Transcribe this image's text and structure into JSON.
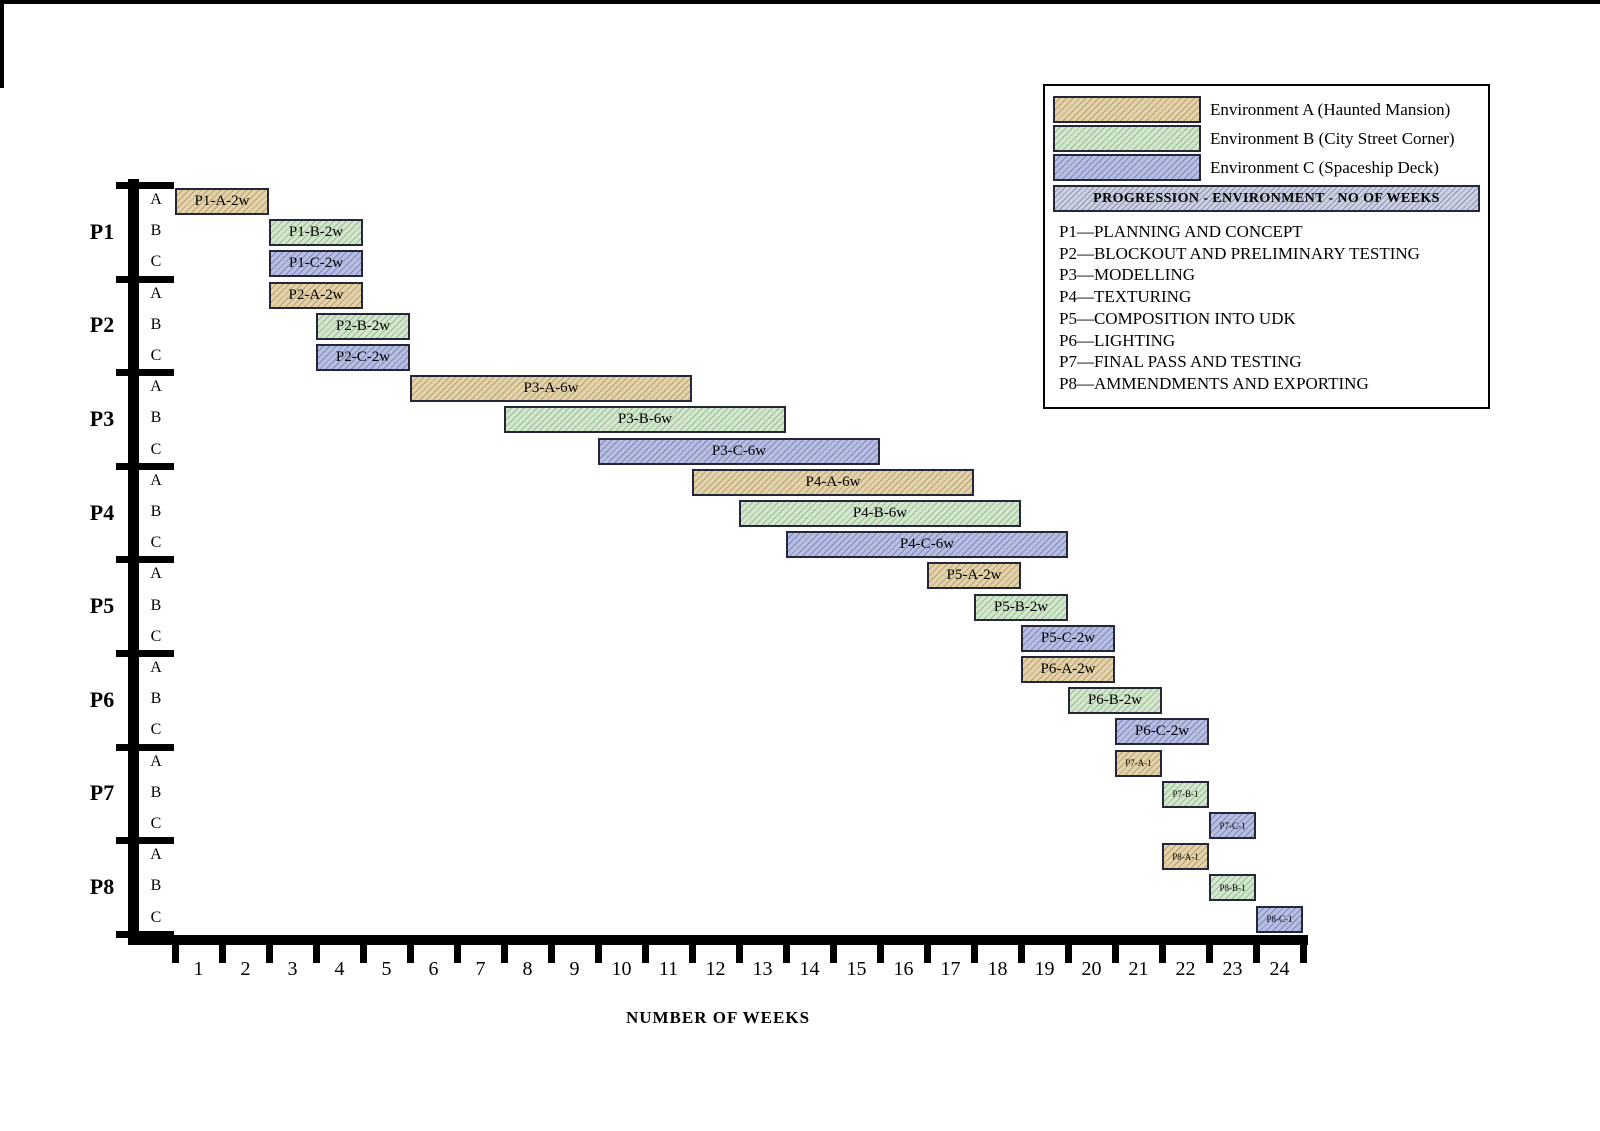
{
  "colors": {
    "env_a_fill": "#e3d3ac",
    "env_a_hatch": "#bba26c",
    "env_b_fill": "#d4e6cd",
    "env_b_hatch": "#97bf94",
    "env_c_fill": "#b7bedf",
    "env_c_hatch": "#8089c2",
    "key_fill": "#ccd0df",
    "key_hatch": "#8d96b8",
    "bar_border": "#26263a"
  },
  "legend": {
    "items": [
      {
        "env": "A",
        "label": "Environment A (Haunted Mansion)"
      },
      {
        "env": "B",
        "label": "Environment B (City Street Corner)"
      },
      {
        "env": "C",
        "label": "Environment C (Spaceship Deck)"
      }
    ],
    "key_bar_label": "PROGRESSION - ENVIRONMENT - NO OF WEEKS",
    "phase_descriptions": [
      "P1—PLANNING AND CONCEPT",
      "P2—BLOCKOUT AND PRELIMINARY TESTING",
      "P3—MODELLING",
      "P4—TEXTURING",
      "P5—COMPOSITION INTO UDK",
      "P6—LIGHTING",
      "P7—FINAL PASS AND TESTING",
      "P8—AMMENDMENTS AND EXPORTING"
    ]
  },
  "chart_data": {
    "type": "gantt",
    "xlabel": "NUMBER OF WEEKS",
    "weeks": 24,
    "x_ticks": [
      1,
      2,
      3,
      4,
      5,
      6,
      7,
      8,
      9,
      10,
      11,
      12,
      13,
      14,
      15,
      16,
      17,
      18,
      19,
      20,
      21,
      22,
      23,
      24
    ],
    "phases": [
      {
        "id": "P1",
        "name": "PLANNING AND CONCEPT",
        "rows": [
          "A",
          "B",
          "C"
        ]
      },
      {
        "id": "P2",
        "name": "BLOCKOUT AND PRELIMINARY TESTING",
        "rows": [
          "A",
          "B",
          "C"
        ]
      },
      {
        "id": "P3",
        "name": "MODELLING",
        "rows": [
          "A",
          "B",
          "C"
        ]
      },
      {
        "id": "P4",
        "name": "TEXTURING",
        "rows": [
          "A",
          "B",
          "C"
        ]
      },
      {
        "id": "P5",
        "name": "COMPOSITION INTO UDK",
        "rows": [
          "A",
          "B",
          "C"
        ]
      },
      {
        "id": "P6",
        "name": "LIGHTING",
        "rows": [
          "A",
          "B",
          "C"
        ]
      },
      {
        "id": "P7",
        "name": "FINAL PASS AND TESTING",
        "rows": [
          "A",
          "B",
          "C"
        ]
      },
      {
        "id": "P8",
        "name": "AMMENDMENTS AND EXPORTING",
        "rows": [
          "A",
          "B",
          "C"
        ]
      }
    ],
    "bars": [
      {
        "phase": "P1",
        "row": "A",
        "env": "A",
        "label": "P1-A-2w",
        "start_week": 1,
        "end_week": 2,
        "duration_weeks": 2
      },
      {
        "phase": "P1",
        "row": "B",
        "env": "B",
        "label": "P1-B-2w",
        "start_week": 3,
        "end_week": 4,
        "duration_weeks": 2
      },
      {
        "phase": "P1",
        "row": "C",
        "env": "C",
        "label": "P1-C-2w",
        "start_week": 3,
        "end_week": 4,
        "duration_weeks": 2
      },
      {
        "phase": "P2",
        "row": "A",
        "env": "A",
        "label": "P2-A-2w",
        "start_week": 3,
        "end_week": 4,
        "duration_weeks": 2
      },
      {
        "phase": "P2",
        "row": "B",
        "env": "B",
        "label": "P2-B-2w",
        "start_week": 4,
        "end_week": 5,
        "duration_weeks": 2
      },
      {
        "phase": "P2",
        "row": "C",
        "env": "C",
        "label": "P2-C-2w",
        "start_week": 4,
        "end_week": 5,
        "duration_weeks": 2
      },
      {
        "phase": "P3",
        "row": "A",
        "env": "A",
        "label": "P3-A-6w",
        "start_week": 6,
        "end_week": 11,
        "duration_weeks": 6
      },
      {
        "phase": "P3",
        "row": "B",
        "env": "B",
        "label": "P3-B-6w",
        "start_week": 8,
        "end_week": 13,
        "duration_weeks": 6
      },
      {
        "phase": "P3",
        "row": "C",
        "env": "C",
        "label": "P3-C-6w",
        "start_week": 10,
        "end_week": 15,
        "duration_weeks": 6
      },
      {
        "phase": "P4",
        "row": "A",
        "env": "A",
        "label": "P4-A-6w",
        "start_week": 12,
        "end_week": 17,
        "duration_weeks": 6
      },
      {
        "phase": "P4",
        "row": "B",
        "env": "B",
        "label": "P4-B-6w",
        "start_week": 13,
        "end_week": 18,
        "duration_weeks": 6
      },
      {
        "phase": "P4",
        "row": "C",
        "env": "C",
        "label": "P4-C-6w",
        "start_week": 14,
        "end_week": 19,
        "duration_weeks": 6
      },
      {
        "phase": "P5",
        "row": "A",
        "env": "A",
        "label": "P5-A-2w",
        "start_week": 17,
        "end_week": 18,
        "duration_weeks": 2
      },
      {
        "phase": "P5",
        "row": "B",
        "env": "B",
        "label": "P5-B-2w",
        "start_week": 18,
        "end_week": 19,
        "duration_weeks": 2
      },
      {
        "phase": "P5",
        "row": "C",
        "env": "C",
        "label": "P5-C-2w",
        "start_week": 19,
        "end_week": 20,
        "duration_weeks": 2
      },
      {
        "phase": "P6",
        "row": "A",
        "env": "A",
        "label": "P6-A-2w",
        "start_week": 19,
        "end_week": 20,
        "duration_weeks": 2
      },
      {
        "phase": "P6",
        "row": "B",
        "env": "B",
        "label": "P6-B-2w",
        "start_week": 20,
        "end_week": 21,
        "duration_weeks": 2
      },
      {
        "phase": "P6",
        "row": "C",
        "env": "C",
        "label": "P6-C-2w",
        "start_week": 21,
        "end_week": 22,
        "duration_weeks": 2
      },
      {
        "phase": "P7",
        "row": "A",
        "env": "A",
        "label": "P7-A-1",
        "start_week": 21,
        "end_week": 21,
        "duration_weeks": 1
      },
      {
        "phase": "P7",
        "row": "B",
        "env": "B",
        "label": "P7-B-1",
        "start_week": 22,
        "end_week": 22,
        "duration_weeks": 1
      },
      {
        "phase": "P7",
        "row": "C",
        "env": "C",
        "label": "P7-C-1",
        "start_week": 23,
        "end_week": 23,
        "duration_weeks": 1
      },
      {
        "phase": "P8",
        "row": "A",
        "env": "A",
        "label": "P8-A-1",
        "start_week": 22,
        "end_week": 22,
        "duration_weeks": 1
      },
      {
        "phase": "P8",
        "row": "B",
        "env": "B",
        "label": "P8-B-1",
        "start_week": 23,
        "end_week": 23,
        "duration_weeks": 1
      },
      {
        "phase": "P8",
        "row": "C",
        "env": "C",
        "label": "P8-C-1",
        "start_week": 24,
        "end_week": 24,
        "duration_weeks": 1
      }
    ]
  }
}
